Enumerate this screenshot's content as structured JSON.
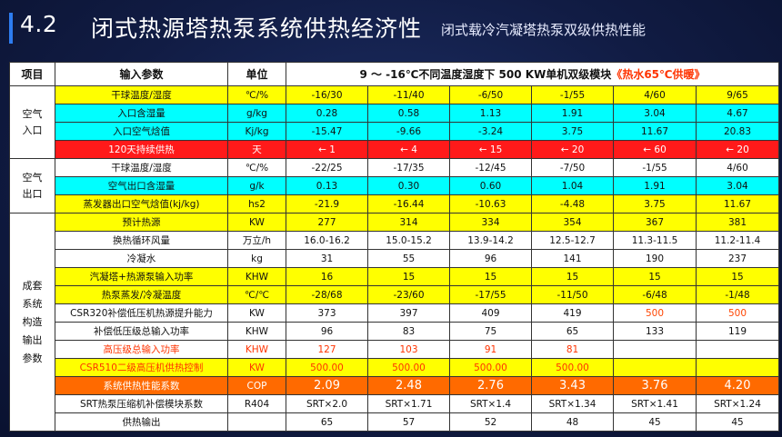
{
  "header": {
    "section": "4.2",
    "title": "闭式热源塔热泵系统供热经济性",
    "subtitle": "闭式载冷汽凝塔热泵双级供热性能"
  },
  "table": {
    "headers": {
      "item": "项目",
      "param": "输入参数",
      "unit": "单位",
      "cond_prefix": "9 ～ -16℃不同温度湿度下 500 KW单机双级模块",
      "cond_hl": "《热水65℃供暖》"
    },
    "groups": {
      "air_in": "空气\n入口",
      "air_out": "空气\n出口",
      "system": "成套\n系统\n构造\n输出\n参数"
    },
    "rows": [
      {
        "label": "干球温度/湿度",
        "unit": "℃/%",
        "values": [
          "-16/30",
          "-11/40",
          "-6/50",
          "-1/55",
          "4/60",
          "9/65"
        ]
      },
      {
        "label": "入口含湿量",
        "unit": "g/kg",
        "values": [
          "0.28",
          "0.58",
          "1.13",
          "1.91",
          "3.04",
          "4.67"
        ]
      },
      {
        "label": "入口空气焓值",
        "unit": "Kj/kg",
        "values": [
          "-15.47",
          "-9.66",
          "-3.24",
          "3.75",
          "11.67",
          "20.83"
        ]
      },
      {
        "label": "120天持续供热",
        "unit": "天",
        "values": [
          "← 1",
          "← 4",
          "← 15",
          "← 20",
          "← 60",
          "← 20"
        ]
      },
      {
        "label": "干球温度/湿度",
        "unit": "℃/%",
        "values": [
          "-22/25",
          "-17/35",
          "-12/45",
          "-7/50",
          "-1/55",
          "4/60"
        ]
      },
      {
        "label": "空气出口含湿量",
        "unit": "g/k",
        "values": [
          "0.13",
          "0.30",
          "0.60",
          "1.04",
          "1.91",
          "3.04"
        ]
      },
      {
        "label": "蒸发器出口空气焓值(kj/kg)",
        "unit": "hs2",
        "values": [
          "-21.9",
          "-16.44",
          "-10.63",
          "-4.48",
          "3.75",
          "11.67"
        ]
      },
      {
        "label": "预计热源",
        "unit": "KW",
        "values": [
          "277",
          "314",
          "334",
          "354",
          "367",
          "381"
        ]
      },
      {
        "label": "换热循环风量",
        "unit": "万立/h",
        "values": [
          "16.0-16.2",
          "15.0-15.2",
          "13.9-14.2",
          "12.5-12.7",
          "11.3-11.5",
          "11.2-11.4"
        ]
      },
      {
        "label": "冷凝水",
        "unit": "kg",
        "values": [
          "31",
          "55",
          "96",
          "141",
          "190",
          "237"
        ]
      },
      {
        "label": "汽凝塔+热源泵输入功率",
        "unit": "KHW",
        "values": [
          "16",
          "15",
          "15",
          "15",
          "15",
          "15"
        ]
      },
      {
        "label": "热泵蒸发/冷凝温度",
        "unit": "℃/℃",
        "values": [
          "-28/68",
          "-23/60",
          "-17/55",
          "-11/50",
          "-6/48",
          "-1/48"
        ]
      },
      {
        "label": "CSR320补偿低压机热源提升能力",
        "unit": "KW",
        "values": [
          "373",
          "397",
          "409",
          "419",
          "500",
          "500"
        ]
      },
      {
        "label": "补偿低压级总输入功率",
        "unit": "KHW",
        "values": [
          "96",
          "83",
          "75",
          "65",
          "133",
          "119"
        ]
      },
      {
        "label": "高压级总输入功率",
        "unit": "KHW",
        "values": [
          "127",
          "103",
          "91",
          "81",
          "",
          ""
        ]
      },
      {
        "label": "CSR510二级高压机供热控制",
        "unit": "KW",
        "values": [
          "500.00",
          "500.00",
          "500.00",
          "500.00",
          "",
          ""
        ]
      },
      {
        "label": "系统供热性能系数",
        "unit": "COP",
        "values": [
          "2.09",
          "2.48",
          "2.76",
          "3.43",
          "3.76",
          "4.20"
        ]
      },
      {
        "label": "SRT热泵压缩机补偿模块系数",
        "unit": "R404",
        "values": [
          "SRT×2.0",
          "SRT×1.71",
          "SRT×1.4",
          "SRT×1.34",
          "SRT×1.41",
          "SRT×1.24"
        ]
      },
      {
        "label": "供热输出",
        "unit": "",
        "values": [
          "65",
          "57",
          "52",
          "48",
          "45",
          "45"
        ]
      }
    ]
  }
}
